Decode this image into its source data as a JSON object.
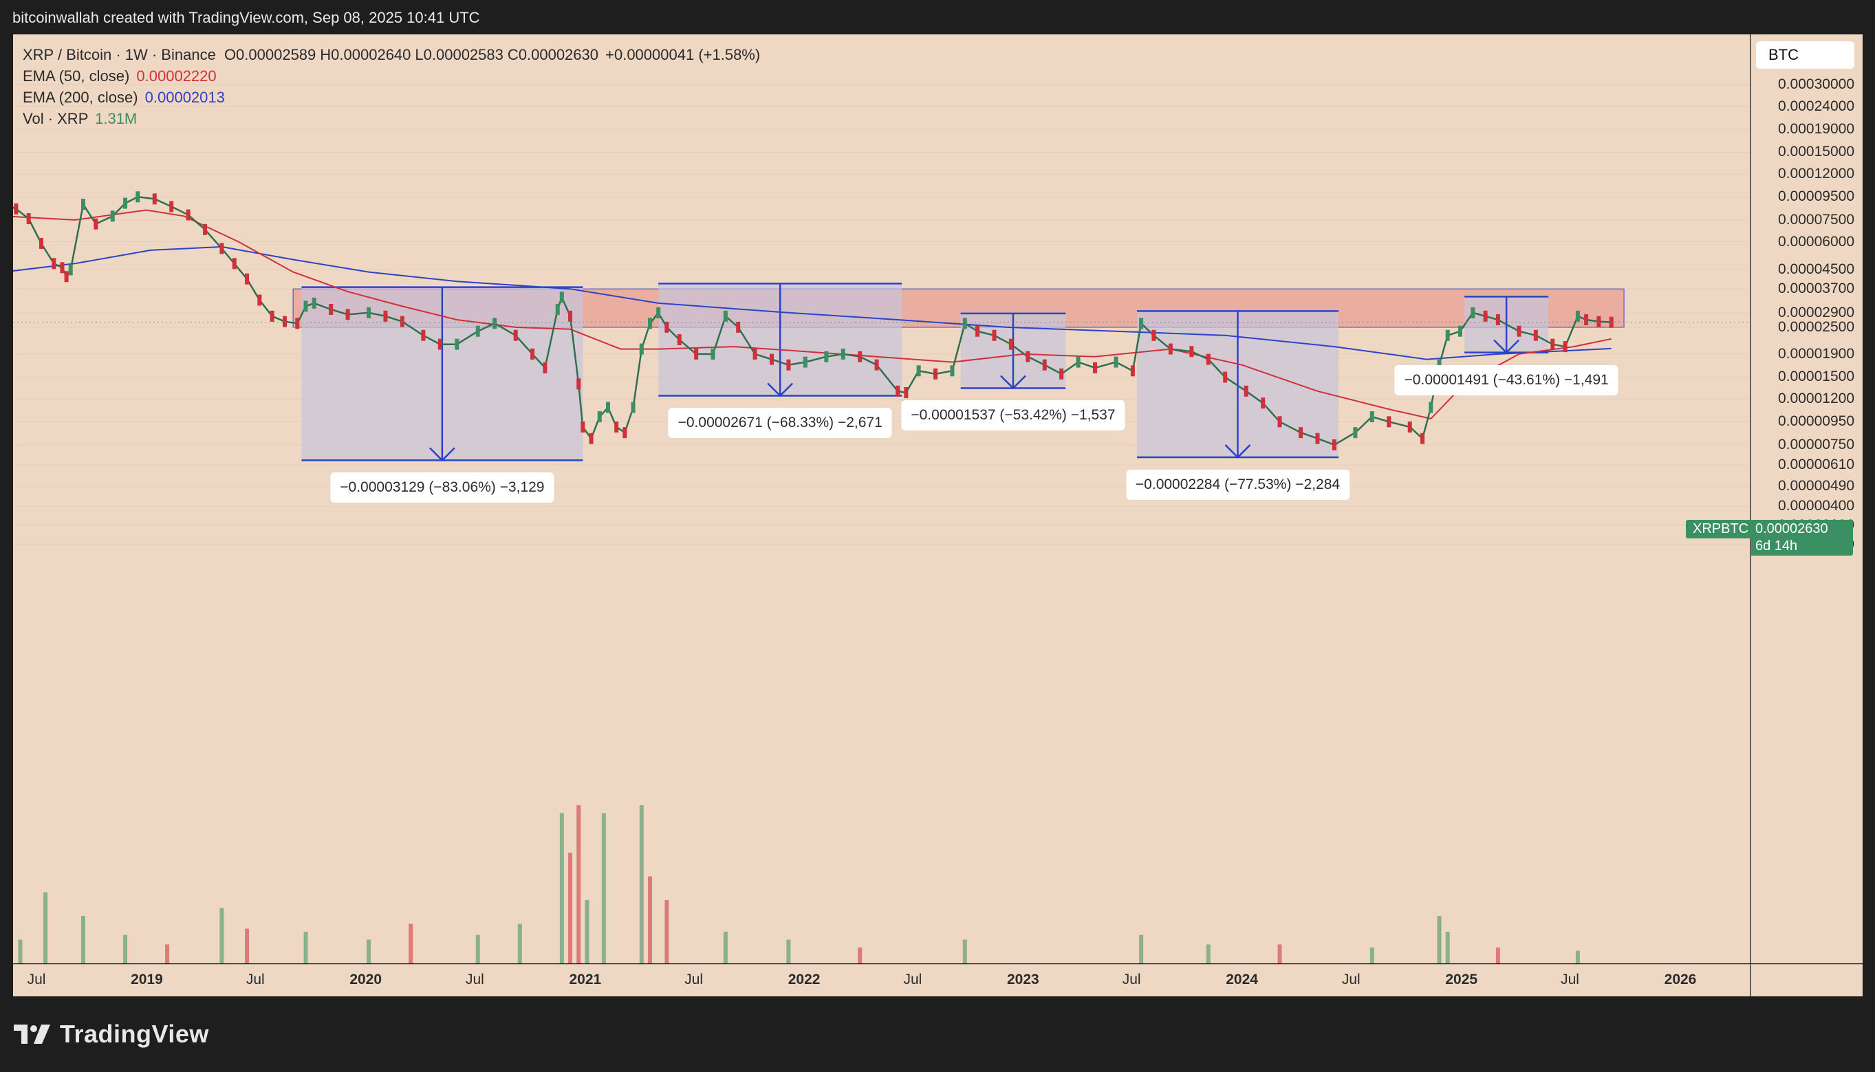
{
  "header": {
    "credit": "bitcoinwallah created with TradingView.com, Sep 08, 2025 10:41 UTC"
  },
  "legend": {
    "title": "XRP / Bitcoin · 1W · Binance",
    "ohlc": [
      {
        "k": "O",
        "v": "0.00002589"
      },
      {
        "k": "H",
        "v": "0.00002640"
      },
      {
        "k": "L",
        "v": "0.00002583"
      },
      {
        "k": "C",
        "v": "0.00002630"
      }
    ],
    "change": "+0.00000041 (+1.58%)",
    "ema50": {
      "label": "EMA (50, close)",
      "value": "0.00002220",
      "color": "#d0303a"
    },
    "ema200": {
      "label": "EMA (200, close)",
      "value": "0.00002013",
      "color": "#2b43c7"
    },
    "vol": {
      "label": "Vol · XRP",
      "value": "1.31M",
      "color": "#3a8f63"
    }
  },
  "currency_button": "BTC",
  "last_price": {
    "symbol": "XRPBTC",
    "value": "0.00002630",
    "countdown": "6d 14h",
    "color": "#3a8f63"
  },
  "footer": {
    "brand": "TradingView"
  },
  "colors": {
    "background": "#eed8c4",
    "up": "#3a8f63",
    "down": "#d0303a",
    "resistance_zone": "#e8a095",
    "measure_box": "#c8c4dc",
    "measure_line": "#2b43c7"
  },
  "chart_data": {
    "type": "line",
    "title": "XRP / Bitcoin · 1W · Binance",
    "y_scale": "log",
    "y_ticks": [
      "0.00030000",
      "0.00024000",
      "0.00019000",
      "0.00015000",
      "0.00012000",
      "0.00009500",
      "0.00007500",
      "0.00006000",
      "0.00004500",
      "0.00003700",
      "0.00002900",
      "0.00002500",
      "0.00001900",
      "0.00001500",
      "0.00001200",
      "0.00000950",
      "0.00000750",
      "0.00000610",
      "0.00000490",
      "0.00000400",
      "0.00000330",
      "0.00000270"
    ],
    "x_ticks": [
      {
        "label": "Jul",
        "t": "2018-07-01",
        "year": false
      },
      {
        "label": "2019",
        "t": "2019-01-01",
        "year": true
      },
      {
        "label": "Jul",
        "t": "2019-07-01",
        "year": false
      },
      {
        "label": "2020",
        "t": "2020-01-01",
        "year": true
      },
      {
        "label": "Jul",
        "t": "2020-07-01",
        "year": false
      },
      {
        "label": "2021",
        "t": "2021-01-01",
        "year": true
      },
      {
        "label": "Jul",
        "t": "2021-07-01",
        "year": false
      },
      {
        "label": "2022",
        "t": "2022-01-01",
        "year": true
      },
      {
        "label": "Jul",
        "t": "2022-07-01",
        "year": false
      },
      {
        "label": "2023",
        "t": "2023-01-01",
        "year": true
      },
      {
        "label": "Jul",
        "t": "2023-07-01",
        "year": false
      },
      {
        "label": "2024",
        "t": "2024-01-01",
        "year": true
      },
      {
        "label": "Jul",
        "t": "2024-07-01",
        "year": false
      },
      {
        "label": "2025",
        "t": "2025-01-01",
        "year": true
      },
      {
        "label": "Jul",
        "t": "2025-07-01",
        "year": false
      },
      {
        "label": "2026",
        "t": "2026-01-01",
        "year": true
      }
    ],
    "price_series": {
      "name": "XRPBTC",
      "points": [
        [
          "2018-05-07",
          8.9e-05
        ],
        [
          "2018-05-28",
          8.4e-05
        ],
        [
          "2018-06-18",
          7.6e-05
        ],
        [
          "2018-07-09",
          5.9e-05
        ],
        [
          "2018-07-30",
          4.8e-05
        ],
        [
          "2018-08-13",
          4.6e-05
        ],
        [
          "2018-08-20",
          4.2e-05
        ],
        [
          "2018-08-27",
          4.5e-05
        ],
        [
          "2018-09-17",
          8.8e-05
        ],
        [
          "2018-10-08",
          7.2e-05
        ],
        [
          "2018-11-05",
          7.8e-05
        ],
        [
          "2018-11-26",
          8.9e-05
        ],
        [
          "2018-12-17",
          9.5e-05
        ],
        [
          "2019-01-14",
          9.3e-05
        ],
        [
          "2019-02-11",
          8.6e-05
        ],
        [
          "2019-03-11",
          7.9e-05
        ],
        [
          "2019-04-08",
          6.8e-05
        ],
        [
          "2019-05-06",
          5.6e-05
        ],
        [
          "2019-05-27",
          4.8e-05
        ],
        [
          "2019-06-17",
          4.1e-05
        ],
        [
          "2019-07-08",
          3.3e-05
        ],
        [
          "2019-07-29",
          2.8e-05
        ],
        [
          "2019-08-19",
          2.65e-05
        ],
        [
          "2019-09-09",
          2.6e-05
        ],
        [
          "2019-09-23",
          3.1e-05
        ],
        [
          "2019-10-07",
          3.2e-05
        ],
        [
          "2019-11-04",
          3e-05
        ],
        [
          "2019-12-02",
          2.85e-05
        ],
        [
          "2020-01-06",
          2.9e-05
        ],
        [
          "2020-02-03",
          2.8e-05
        ],
        [
          "2020-03-02",
          2.65e-05
        ],
        [
          "2020-04-06",
          2.3e-05
        ],
        [
          "2020-05-04",
          2.1e-05
        ],
        [
          "2020-06-01",
          2.1e-05
        ],
        [
          "2020-07-06",
          2.4e-05
        ],
        [
          "2020-08-03",
          2.6e-05
        ],
        [
          "2020-09-07",
          2.3e-05
        ],
        [
          "2020-10-05",
          1.9e-05
        ],
        [
          "2020-10-26",
          1.65e-05
        ],
        [
          "2020-11-16",
          3e-05
        ],
        [
          "2020-11-23",
          3.4e-05
        ],
        [
          "2020-12-07",
          2.8e-05
        ],
        [
          "2020-12-21",
          1.4e-05
        ],
        [
          "2020-12-28",
          9e-06
        ],
        [
          "2021-01-11",
          8e-06
        ],
        [
          "2021-01-25",
          1e-05
        ],
        [
          "2021-02-08",
          1.1e-05
        ],
        [
          "2021-02-22",
          9e-06
        ],
        [
          "2021-03-08",
          8.5e-06
        ],
        [
          "2021-03-22",
          1.1e-05
        ],
        [
          "2021-04-05",
          2e-05
        ],
        [
          "2021-04-19",
          2.6e-05
        ],
        [
          "2021-05-03",
          2.9e-05
        ],
        [
          "2021-05-17",
          2.5e-05
        ],
        [
          "2021-06-07",
          2.2e-05
        ],
        [
          "2021-07-05",
          1.9e-05
        ],
        [
          "2021-08-02",
          1.9e-05
        ],
        [
          "2021-08-23",
          2.8e-05
        ],
        [
          "2021-09-13",
          2.5e-05
        ],
        [
          "2021-10-11",
          1.9e-05
        ],
        [
          "2021-11-08",
          1.8e-05
        ],
        [
          "2021-12-06",
          1.7e-05
        ],
        [
          "2022-01-03",
          1.75e-05
        ],
        [
          "2022-02-07",
          1.85e-05
        ],
        [
          "2022-03-07",
          1.9e-05
        ],
        [
          "2022-04-04",
          1.85e-05
        ],
        [
          "2022-05-02",
          1.7e-05
        ],
        [
          "2022-06-06",
          1.3e-05
        ],
        [
          "2022-06-20",
          1.28e-05
        ],
        [
          "2022-07-11",
          1.6e-05
        ],
        [
          "2022-08-08",
          1.55e-05
        ],
        [
          "2022-09-05",
          1.6e-05
        ],
        [
          "2022-09-26",
          2.6e-05
        ],
        [
          "2022-10-17",
          2.4e-05
        ],
        [
          "2022-11-14",
          2.3e-05
        ],
        [
          "2022-12-12",
          2.1e-05
        ],
        [
          "2023-01-09",
          1.85e-05
        ],
        [
          "2023-02-06",
          1.7e-05
        ],
        [
          "2023-03-06",
          1.55e-05
        ],
        [
          "2023-04-03",
          1.75e-05
        ],
        [
          "2023-05-01",
          1.65e-05
        ],
        [
          "2023-06-05",
          1.75e-05
        ],
        [
          "2023-07-03",
          1.6e-05
        ],
        [
          "2023-07-17",
          2.6e-05
        ],
        [
          "2023-08-07",
          2.3e-05
        ],
        [
          "2023-09-04",
          2e-05
        ],
        [
          "2023-10-09",
          1.95e-05
        ],
        [
          "2023-11-06",
          1.8e-05
        ],
        [
          "2023-12-04",
          1.5e-05
        ],
        [
          "2024-01-08",
          1.3e-05
        ],
        [
          "2024-02-05",
          1.15e-05
        ],
        [
          "2024-03-04",
          9.5e-06
        ],
        [
          "2024-04-08",
          8.5e-06
        ],
        [
          "2024-05-06",
          8e-06
        ],
        [
          "2024-06-03",
          7.5e-06
        ],
        [
          "2024-07-08",
          8.5e-06
        ],
        [
          "2024-08-05",
          1e-05
        ],
        [
          "2024-09-02",
          9.5e-06
        ],
        [
          "2024-10-07",
          9e-06
        ],
        [
          "2024-10-28",
          8e-06
        ],
        [
          "2024-11-11",
          1.1e-05
        ],
        [
          "2024-11-25",
          1.7e-05
        ],
        [
          "2024-12-09",
          2.3e-05
        ],
        [
          "2024-12-30",
          2.4e-05
        ],
        [
          "2025-01-20",
          2.9e-05
        ],
        [
          "2025-02-10",
          2.8e-05
        ],
        [
          "2025-03-03",
          2.7e-05
        ],
        [
          "2025-04-07",
          2.4e-05
        ],
        [
          "2025-05-05",
          2.3e-05
        ],
        [
          "2025-06-02",
          2.1e-05
        ],
        [
          "2025-06-23",
          2.05e-05
        ],
        [
          "2025-07-14",
          2.8e-05
        ],
        [
          "2025-07-28",
          2.7e-05
        ],
        [
          "2025-08-18",
          2.65e-05
        ],
        [
          "2025-09-08",
          2.63e-05
        ]
      ]
    },
    "ema50": {
      "name": "EMA (50, close)",
      "points": [
        [
          "2018-05-07",
          7.8e-05
        ],
        [
          "2018-09-03",
          7.5e-05
        ],
        [
          "2018-12-31",
          8.3e-05
        ],
        [
          "2019-03-04",
          7.8e-05
        ],
        [
          "2019-06-03",
          6e-05
        ],
        [
          "2019-09-02",
          4.4e-05
        ],
        [
          "2019-12-02",
          3.6e-05
        ],
        [
          "2020-03-02",
          3.1e-05
        ],
        [
          "2020-06-01",
          2.7e-05
        ],
        [
          "2020-09-07",
          2.5e-05
        ],
        [
          "2020-12-07",
          2.45e-05
        ],
        [
          "2021-03-01",
          2e-05
        ],
        [
          "2021-05-03",
          2e-05
        ],
        [
          "2021-09-06",
          2.05e-05
        ],
        [
          "2022-01-03",
          1.95e-05
        ],
        [
          "2022-05-02",
          1.85e-05
        ],
        [
          "2022-09-05",
          1.75e-05
        ],
        [
          "2023-01-02",
          1.9e-05
        ],
        [
          "2023-05-01",
          1.85e-05
        ],
        [
          "2023-09-04",
          2e-05
        ],
        [
          "2024-01-01",
          1.7e-05
        ],
        [
          "2024-05-06",
          1.3e-05
        ],
        [
          "2024-09-02",
          1.08e-05
        ],
        [
          "2024-11-11",
          9.8e-06
        ],
        [
          "2025-01-06",
          1.4e-05
        ],
        [
          "2025-04-07",
          1.9e-05
        ],
        [
          "2025-07-07",
          2.05e-05
        ],
        [
          "2025-09-08",
          2.22e-05
        ]
      ]
    },
    "ema200": {
      "name": "EMA (200, close)",
      "points": [
        [
          "2018-05-07",
          4.4e-05
        ],
        [
          "2018-09-03",
          4.8e-05
        ],
        [
          "2019-01-07",
          5.5e-05
        ],
        [
          "2019-05-06",
          5.7e-05
        ],
        [
          "2019-09-02",
          5e-05
        ],
        [
          "2020-01-06",
          4.4e-05
        ],
        [
          "2020-06-01",
          4e-05
        ],
        [
          "2020-12-07",
          3.7e-05
        ],
        [
          "2021-05-03",
          3.2e-05
        ],
        [
          "2021-12-06",
          2.9e-05
        ],
        [
          "2022-06-06",
          2.7e-05
        ],
        [
          "2022-12-05",
          2.5e-05
        ],
        [
          "2023-06-05",
          2.4e-05
        ],
        [
          "2023-12-04",
          2.3e-05
        ],
        [
          "2024-06-03",
          2.05e-05
        ],
        [
          "2024-11-04",
          1.8e-05
        ],
        [
          "2025-03-03",
          1.9e-05
        ],
        [
          "2025-09-08",
          2.01e-05
        ]
      ]
    },
    "volume": {
      "name": "Vol · XRP",
      "note": "relative heights 0..1",
      "points": [
        [
          "2018-06-04",
          0.15,
          "up"
        ],
        [
          "2018-07-16",
          0.45,
          "up"
        ],
        [
          "2018-09-17",
          0.3,
          "up"
        ],
        [
          "2018-11-26",
          0.18,
          "up"
        ],
        [
          "2019-02-04",
          0.12,
          "down"
        ],
        [
          "2019-05-06",
          0.35,
          "up"
        ],
        [
          "2019-06-17",
          0.22,
          "down"
        ],
        [
          "2019-09-23",
          0.2,
          "up"
        ],
        [
          "2020-01-06",
          0.15,
          "up"
        ],
        [
          "2020-03-16",
          0.25,
          "down"
        ],
        [
          "2020-07-06",
          0.18,
          "up"
        ],
        [
          "2020-09-14",
          0.25,
          "up"
        ],
        [
          "2020-11-23",
          0.95,
          "up"
        ],
        [
          "2020-12-07",
          0.7,
          "down"
        ],
        [
          "2020-12-21",
          1.0,
          "down"
        ],
        [
          "2021-01-04",
          0.4,
          "up"
        ],
        [
          "2021-02-01",
          0.95,
          "up"
        ],
        [
          "2021-04-05",
          1.0,
          "up"
        ],
        [
          "2021-04-19",
          0.55,
          "down"
        ],
        [
          "2021-05-17",
          0.4,
          "down"
        ],
        [
          "2021-08-23",
          0.2,
          "up"
        ],
        [
          "2021-12-06",
          0.15,
          "up"
        ],
        [
          "2022-04-04",
          0.1,
          "down"
        ],
        [
          "2022-09-26",
          0.15,
          "up"
        ],
        [
          "2023-07-17",
          0.18,
          "up"
        ],
        [
          "2023-11-06",
          0.12,
          "up"
        ],
        [
          "2024-03-04",
          0.12,
          "down"
        ],
        [
          "2024-08-05",
          0.1,
          "up"
        ],
        [
          "2024-11-25",
          0.3,
          "up"
        ],
        [
          "2024-12-09",
          0.2,
          "up"
        ],
        [
          "2025-03-03",
          0.1,
          "down"
        ],
        [
          "2025-07-14",
          0.08,
          "up"
        ]
      ]
    },
    "resistance_zone": {
      "from": "2019-09-02",
      "to": "2025-09-29",
      "low": 2.5e-05,
      "high": 3.7e-05
    },
    "measurements": [
      {
        "label": "−0.00003129 (−83.06%) −3,129",
        "from_date": "2019-09-16",
        "to_date": "2020-12-28",
        "high": 3.77e-05,
        "low": 6.4e-06
      },
      {
        "label": "−0.00002671 (−68.33%) −2,671",
        "from_date": "2021-05-03",
        "to_date": "2022-06-13",
        "high": 3.91e-05,
        "low": 1.24e-05
      },
      {
        "label": "−0.00001537 (−53.42%) −1,537",
        "from_date": "2022-09-19",
        "to_date": "2023-03-13",
        "high": 2.88e-05,
        "low": 1.34e-05
      },
      {
        "label": "−0.00002284 (−77.53%) −2,284",
        "from_date": "2023-07-10",
        "to_date": "2024-06-10",
        "high": 2.95e-05,
        "low": 6.6e-06
      },
      {
        "label": "−0.00001491 (−43.61%) −1,491",
        "from_date": "2025-01-06",
        "to_date": "2025-05-26",
        "high": 3.42e-05,
        "low": 1.93e-05
      }
    ]
  }
}
